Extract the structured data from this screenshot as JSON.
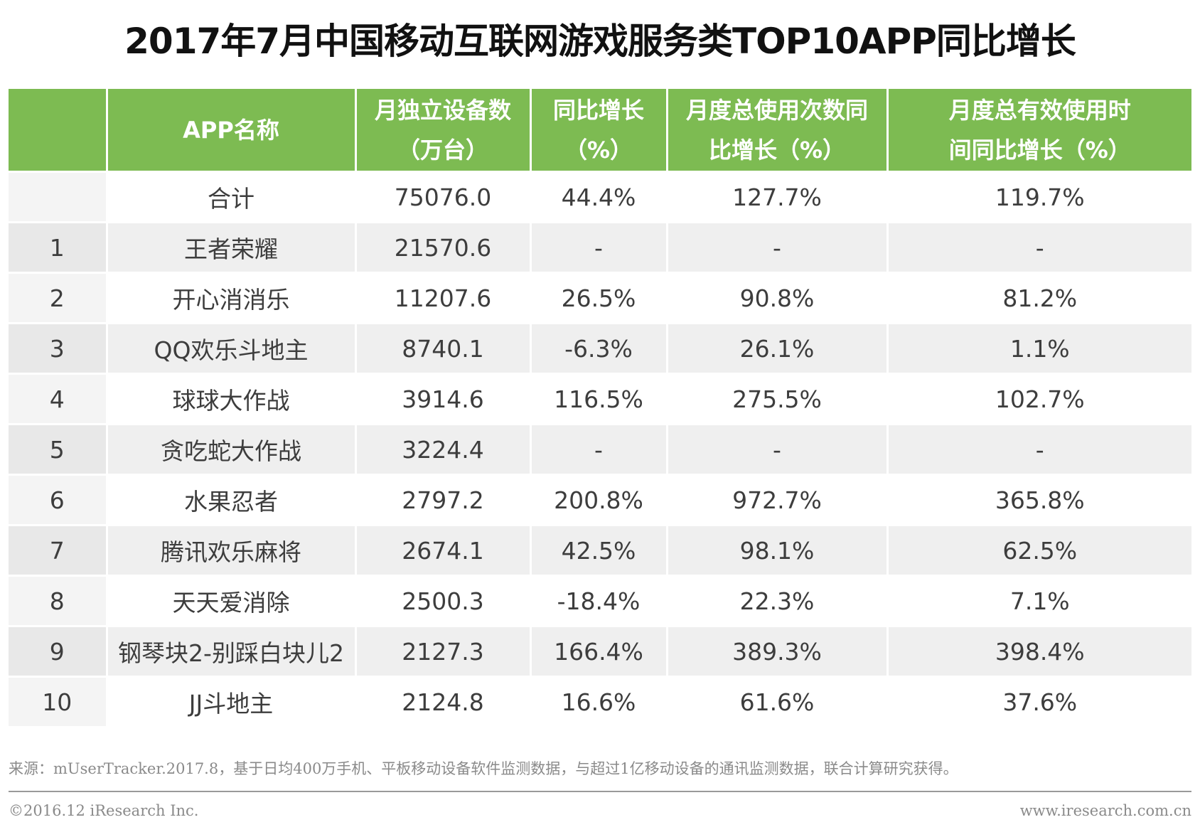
{
  "title": "2017年7月中国移动互联网游戏服务类TOP10APP同比增长",
  "table": {
    "headers": [
      {
        "line1": "",
        "line2": ""
      },
      {
        "line1": "APP名称",
        "line2": ""
      },
      {
        "line1": "月独立设备数",
        "line2": "（万台）"
      },
      {
        "line1": "同比增长",
        "line2": "（%）"
      },
      {
        "line1": "月度总使用次数同",
        "line2": "比增长（%）"
      },
      {
        "line1": "月度总有效使用时",
        "line2": "间同比增长（%）"
      }
    ],
    "rows": [
      {
        "rank": "",
        "name": "合计",
        "devices": "75076.0",
        "yoy": "44.4%",
        "usage_yoy": "127.7%",
        "time_yoy": "119.7%"
      },
      {
        "rank": "1",
        "name": "王者荣耀",
        "devices": "21570.6",
        "yoy": "-",
        "usage_yoy": "-",
        "time_yoy": "-"
      },
      {
        "rank": "2",
        "name": "开心消消乐",
        "devices": "11207.6",
        "yoy": "26.5%",
        "usage_yoy": "90.8%",
        "time_yoy": "81.2%"
      },
      {
        "rank": "3",
        "name": "QQ欢乐斗地主",
        "devices": "8740.1",
        "yoy": "-6.3%",
        "usage_yoy": "26.1%",
        "time_yoy": "1.1%"
      },
      {
        "rank": "4",
        "name": "球球大作战",
        "devices": "3914.6",
        "yoy": "116.5%",
        "usage_yoy": "275.5%",
        "time_yoy": "102.7%"
      },
      {
        "rank": "5",
        "name": "贪吃蛇大作战",
        "devices": "3224.4",
        "yoy": "-",
        "usage_yoy": "-",
        "time_yoy": "-"
      },
      {
        "rank": "6",
        "name": "水果忍者",
        "devices": "2797.2",
        "yoy": "200.8%",
        "usage_yoy": "972.7%",
        "time_yoy": "365.8%"
      },
      {
        "rank": "7",
        "name": "腾讯欢乐麻将",
        "devices": "2674.1",
        "yoy": "42.5%",
        "usage_yoy": "98.1%",
        "time_yoy": "62.5%"
      },
      {
        "rank": "8",
        "name": "天天爱消除",
        "devices": "2500.3",
        "yoy": "-18.4%",
        "usage_yoy": "22.3%",
        "time_yoy": "7.1%"
      },
      {
        "rank": "9",
        "name": "钢琴块2-别踩白块儿2",
        "devices": "2127.3",
        "yoy": "166.4%",
        "usage_yoy": "389.3%",
        "time_yoy": "398.4%"
      },
      {
        "rank": "10",
        "name": "JJ斗地主",
        "devices": "2124.8",
        "yoy": "16.6%",
        "usage_yoy": "61.6%",
        "time_yoy": "37.6%"
      }
    ]
  },
  "footer": {
    "source": "来源：mUserTracker.2017.8，基于日均400万手机、平板移动设备软件监测数据，与超过1亿移动设备的通讯监测数据，联合计算研究获得。",
    "copyright": "©2016.12 iResearch Inc.",
    "website": "www.iresearch.com.cn"
  }
}
